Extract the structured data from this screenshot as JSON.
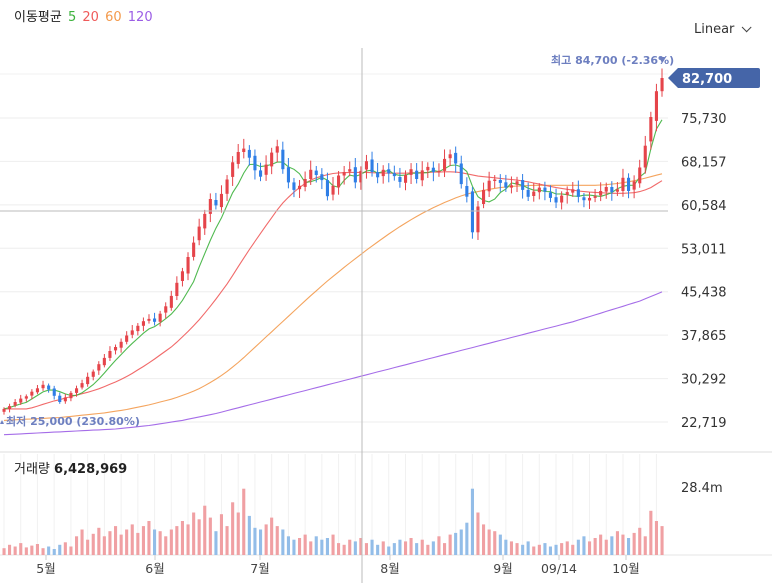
{
  "legend": {
    "title": "이동평균",
    "ma5": "5",
    "ma20": "20",
    "ma60": "60",
    "ma120": "120",
    "colors": {
      "ma5": "#3db33d",
      "ma20": "#ef5a5a",
      "ma60": "#f39a4c",
      "ma120": "#9b5de5"
    }
  },
  "scale_mode": "Linear",
  "price_axis": {
    "ticks": [
      "75,730",
      "68,157",
      "60,584",
      "53,011",
      "45,438",
      "37,865",
      "30,292",
      "22,719"
    ],
    "tick_values": [
      75730,
      68157,
      60584,
      53011,
      45438,
      37865,
      30292,
      22719
    ],
    "current_price": "82,700",
    "current_value": 82700
  },
  "annotations": {
    "high": "최고 84,700 (-2.36%)",
    "low": "최저 25,000 (230.80%)"
  },
  "volume": {
    "title": "거래량",
    "value": "6,428,969",
    "axis_tick": "28.4m"
  },
  "month_labels": [
    "5월",
    "6월",
    "7월",
    "8월",
    "9월",
    "09/14",
    "10월"
  ],
  "colors": {
    "up": "#e5444a",
    "down": "#2f7ee6",
    "vol_up": "#f0a0a3",
    "vol_down": "#93bde8",
    "current": "#4565a8"
  },
  "chart_data": {
    "type": "candlestick",
    "title": "이동평균 5 20 60 120",
    "xlabel": "",
    "ylabel": "",
    "ylim": [
      19000,
      88000
    ],
    "x": [
      "5월",
      "6월",
      "7월",
      "8월",
      "9월",
      "09/14",
      "10월"
    ],
    "close_series": [
      25000,
      25500,
      26200,
      26800,
      27200,
      28000,
      28600,
      29200,
      28400,
      27300,
      26200,
      27000,
      27800,
      28600,
      29500,
      30600,
      31500,
      32800,
      33900,
      35100,
      35800,
      36700,
      37800,
      38700,
      39500,
      40300,
      40700,
      40200,
      41600,
      42900,
      44700,
      47000,
      49000,
      51500,
      54000,
      56800,
      59000,
      61600,
      60500,
      62500,
      65000,
      68000,
      69800,
      70400,
      68800,
      66600,
      65500,
      67600,
      69700,
      70800,
      66800,
      64500,
      63200,
      63900,
      65100,
      66700,
      65800,
      64900,
      62100,
      63900,
      65700,
      66300,
      66800,
      64500,
      66500,
      68200,
      66300,
      65400,
      66700,
      66100,
      65600,
      64600,
      65800,
      66800,
      65100,
      66600,
      67200,
      66300,
      66500,
      68600,
      69400,
      67800,
      64200,
      62000,
      55800,
      60300,
      63200,
      64800,
      65000,
      64400,
      63600,
      64000,
      64700,
      63200,
      62000,
      62900,
      63600,
      62900,
      61800,
      61000,
      62200,
      62800,
      63300,
      62000,
      61400,
      61800,
      62100,
      63000,
      63700,
      62800,
      63300,
      65300,
      63000,
      64700,
      67100,
      70900,
      75900,
      80400,
      82700
    ],
    "ma5": [
      25000,
      25250,
      25567,
      25875,
      26140,
      26740,
      27360,
      27960,
      28280,
      28300,
      28000,
      27620,
      27340,
      27380,
      27820,
      28500,
      29240,
      30200,
      31260,
      32380,
      33460,
      34480,
      35500,
      36440,
      37300,
      38200,
      38960,
      39360,
      40000,
      40740,
      41540,
      42640,
      43920,
      45540,
      47200,
      49760,
      52060,
      54380,
      56520,
      58320,
      60560,
      62680,
      64200,
      66140,
      67620,
      67660,
      67260,
      67390,
      67640,
      68040,
      68040,
      67200,
      66780,
      66020,
      64500,
      64620,
      64940,
      65380,
      64900,
      63900,
      63640,
      64860,
      65780,
      65560,
      65880,
      66500,
      66620,
      66140,
      66360,
      66600,
      65920,
      65720,
      65780,
      66100,
      66100,
      66170,
      66200,
      66600,
      66360,
      66880,
      67440,
      67540,
      67200,
      66400,
      63840,
      62000,
      61340,
      61100,
      61580,
      62720,
      63360,
      64400,
      64200,
      64000,
      63480,
      63140,
      63160,
      62920,
      62880,
      62480,
      62500,
      62360,
      62120,
      62080,
      62260,
      62280,
      62160,
      62060,
      62360,
      62720,
      63400,
      63820,
      64000,
      64020,
      65440,
      66240,
      70320,
      73800,
      75420
    ],
    "ma20": [
      25000,
      25000,
      25000,
      25000,
      25000,
      25200,
      25500,
      25800,
      26100,
      26400,
      26600,
      26900,
      27150,
      27400,
      27650,
      27900,
      28200,
      28500,
      28900,
      29300,
      29700,
      30150,
      30650,
      31200,
      31800,
      32400,
      33050,
      33700,
      34400,
      35100,
      35800,
      36650,
      37550,
      38500,
      39500,
      40550,
      41700,
      42900,
      44150,
      45450,
      46800,
      48250,
      49800,
      51300,
      52800,
      54200,
      55600,
      57000,
      58350,
      59700,
      60900,
      61900,
      62800,
      63600,
      64300,
      64900,
      65300,
      65600,
      65850,
      66050,
      66150,
      66200,
      66250,
      66250,
      66250,
      66250,
      66200,
      66150,
      66150,
      66100,
      66100,
      66100,
      66100,
      66150,
      66200,
      66200,
      66250,
      66300,
      66300,
      66350,
      66350,
      66300,
      66200,
      66000,
      65800,
      65600,
      65500,
      65400,
      65300,
      65200,
      65100,
      65000,
      64900,
      64750,
      64600,
      64400,
      64200,
      64000,
      63800,
      63600,
      63450,
      63300,
      63150,
      63000,
      62900,
      62800,
      62750,
      62700,
      62650,
      62600,
      62600,
      62600,
      62650,
      62700,
      62900,
      63200,
      63600,
      64200,
      64800
    ],
    "ma60": [
      23000,
      23050,
      23100,
      23150,
      23200,
      23250,
      23300,
      23350,
      23400,
      23450,
      23500,
      23600,
      23700,
      23800,
      23900,
      24000,
      24100,
      24200,
      24300,
      24450,
      24600,
      24750,
      24900,
      25100,
      25300,
      25500,
      25700,
      25950,
      26200,
      26450,
      26700,
      27000,
      27350,
      27700,
      28100,
      28550,
      29050,
      29600,
      30200,
      30850,
      31550,
      32300,
      33100,
      33950,
      34850,
      35750,
      36650,
      37550,
      38450,
      39350,
      40250,
      41150,
      42050,
      42950,
      43850,
      44750,
      45600,
      46450,
      47300,
      48100,
      48900,
      49700,
      50450,
      51200,
      51950,
      52700,
      53400,
      54100,
      54800,
      55500,
      56150,
      56800,
      57400,
      58000,
      58550,
      59100,
      59600,
      60100,
      60550,
      61000,
      61400,
      61800,
      62150,
      62450,
      62700,
      62900,
      63100,
      63300,
      63450,
      63600,
      63700,
      63800,
      63850,
      63900,
      63950,
      64000,
      64000,
      64000,
      64000,
      64000,
      64000,
      64000,
      64000,
      64000,
      64000,
      64000,
      64000,
      64050,
      64100,
      64200,
      64300,
      64450,
      64600,
      64800,
      65000,
      65250,
      65500,
      65750,
      66000
    ],
    "ma120": [
      20500,
      20550,
      20600,
      20650,
      20700,
      20750,
      20800,
      20850,
      20900,
      20950,
      21000,
      21050,
      21100,
      21150,
      21200,
      21250,
      21300,
      21350,
      21400,
      21450,
      21500,
      21600,
      21700,
      21800,
      21900,
      22000,
      22100,
      22250,
      22400,
      22550,
      22700,
      22850,
      23000,
      23200,
      23400,
      23600,
      23800,
      24000,
      24200,
      24450,
      24700,
      24950,
      25200,
      25450,
      25700,
      25950,
      26200,
      26450,
      26700,
      26950,
      27200,
      27450,
      27700,
      27950,
      28200,
      28450,
      28700,
      28950,
      29200,
      29450,
      29700,
      29950,
      30200,
      30450,
      30700,
      30950,
      31200,
      31450,
      31700,
      31950,
      32200,
      32450,
      32700,
      32950,
      33200,
      33450,
      33700,
      33950,
      34200,
      34450,
      34700,
      34950,
      35200,
      35450,
      35700,
      35950,
      36200,
      36450,
      36700,
      36950,
      37200,
      37450,
      37700,
      37950,
      38200,
      38450,
      38700,
      38950,
      39200,
      39450,
      39700,
      39950,
      40200,
      40500,
      40800,
      41100,
      41400,
      41700,
      42000,
      42300,
      42600,
      42900,
      43200,
      43500,
      43800,
      44200,
      44600,
      45000,
      45400
    ],
    "volume_rel": [
      0.08,
      0.12,
      0.1,
      0.14,
      0.09,
      0.11,
      0.13,
      0.08,
      0.1,
      0.07,
      0.12,
      0.15,
      0.1,
      0.22,
      0.3,
      0.18,
      0.25,
      0.32,
      0.22,
      0.28,
      0.34,
      0.24,
      0.3,
      0.36,
      0.26,
      0.34,
      0.4,
      0.3,
      0.28,
      0.22,
      0.3,
      0.34,
      0.4,
      0.36,
      0.5,
      0.42,
      0.58,
      0.44,
      0.28,
      0.48,
      0.34,
      0.62,
      0.5,
      0.78,
      0.46,
      0.32,
      0.3,
      0.36,
      0.44,
      0.34,
      0.3,
      0.22,
      0.18,
      0.2,
      0.24,
      0.16,
      0.22,
      0.18,
      0.2,
      0.24,
      0.14,
      0.12,
      0.18,
      0.16,
      0.2,
      0.14,
      0.18,
      0.12,
      0.16,
      0.1,
      0.14,
      0.18,
      0.16,
      0.2,
      0.14,
      0.18,
      0.12,
      0.16,
      0.22,
      0.14,
      0.24,
      0.26,
      0.3,
      0.38,
      0.78,
      0.5,
      0.36,
      0.3,
      0.28,
      0.24,
      0.18,
      0.16,
      0.14,
      0.12,
      0.16,
      0.1,
      0.12,
      0.14,
      0.1,
      0.12,
      0.14,
      0.16,
      0.12,
      0.18,
      0.22,
      0.16,
      0.2,
      0.24,
      0.18,
      0.22,
      0.28,
      0.24,
      0.2,
      0.26,
      0.32,
      0.22,
      0.52,
      0.4,
      0.34
    ]
  }
}
